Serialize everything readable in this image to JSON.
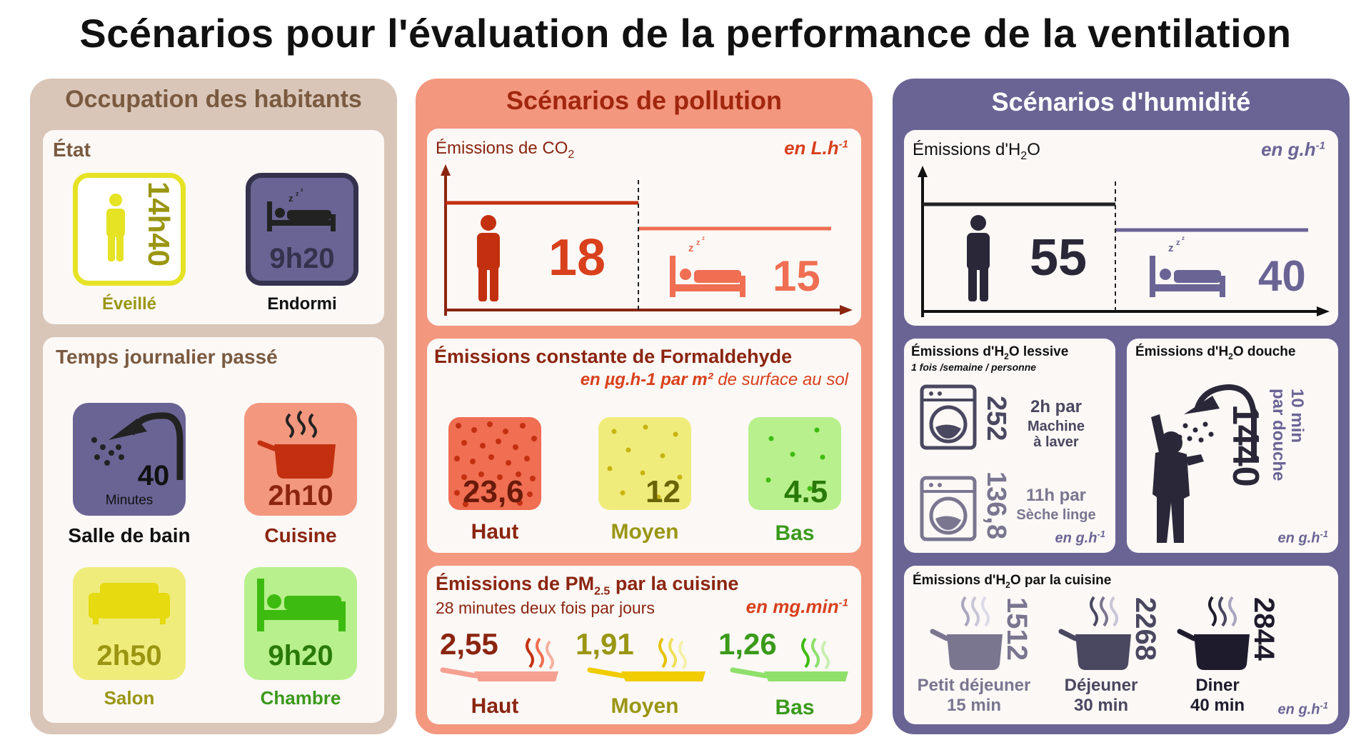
{
  "title": "Scénarios pour l'évaluation de la performance de la ventilation",
  "occupation": {
    "title": "Occupation des habitants",
    "etat": {
      "title": "État",
      "awake": {
        "time": "14h40",
        "label": "Éveillé"
      },
      "asleep": {
        "time": "9h20",
        "label": "Endormi"
      }
    },
    "temps": {
      "title": "Temps journalier passé",
      "bathroom": {
        "value": "40",
        "unit": "Minutes",
        "label": "Salle de bain"
      },
      "kitchen": {
        "value": "2h10",
        "label": "Cuisine"
      },
      "living": {
        "value": "2h50",
        "label": "Salon"
      },
      "bedroom": {
        "value": "9h20",
        "label": "Chambre"
      }
    }
  },
  "pollution": {
    "title": "Scénarios de pollution",
    "co2": {
      "title_prefix": "Émissions de CO",
      "title_sub": "2",
      "unit_base": "en L.h",
      "unit_exp": "-1",
      "awake": "18",
      "asleep": "15"
    },
    "formaldehyde": {
      "title": "Émissions constante de Formaldehyde",
      "unit_italic": "en µg.h-1 par m²",
      "unit_rest": " de surface au sol",
      "high": {
        "value": "23,6",
        "label": "Haut"
      },
      "mid": {
        "value": "12",
        "label": "Moyen"
      },
      "low": {
        "value": "4.5",
        "label": "Bas"
      }
    },
    "pm": {
      "title_prefix": "Émissions de PM",
      "title_sub": "2.5",
      "title_suffix": " par la cuisine",
      "subtitle": "28 minutes deux fois par jours",
      "unit_base": "en mg.min",
      "unit_exp": "-1",
      "high": {
        "value": "2,55",
        "label": "Haut"
      },
      "mid": {
        "value": "1,91",
        "label": "Moyen"
      },
      "low": {
        "value": "1,26",
        "label": "Bas"
      }
    }
  },
  "humidity": {
    "title": "Scénarios d'humidité",
    "h2o": {
      "title_prefix": "Émissions d'H",
      "title_sub": "2",
      "title_suffix": "O",
      "unit_base": "en g.h",
      "unit_exp": "-1",
      "awake": "55",
      "asleep": "40"
    },
    "laundry": {
      "title_prefix": "Émissions d'H",
      "title_sub": "2",
      "title_suffix": "O lessive",
      "subtitle": "1 fois /semaine / personne",
      "washer": {
        "value": "252",
        "line1": "2h par",
        "line2": "Machine",
        "line3": "à laver"
      },
      "dryer": {
        "value": "136,8",
        "line1": "11h par",
        "line2": "Sèche linge"
      },
      "unit_base": "en g.h",
      "unit_exp": "-1"
    },
    "shower": {
      "title_prefix": "Émissions d'H",
      "title_sub": "2",
      "title_suffix": "O douche",
      "value": "1440",
      "duration_line1": "10 min",
      "duration_line2": "par douche",
      "unit_base": "en g.h",
      "unit_exp": "-1"
    },
    "cooking": {
      "title_prefix": "Émissions d'H",
      "title_sub": "2",
      "title_suffix": "O par la cuisine",
      "breakfast": {
        "value": "1512",
        "label": "Petit déjeuner",
        "duration": "15 min"
      },
      "lunch": {
        "value": "2268",
        "label": "Déjeuner",
        "duration": "30 min"
      },
      "dinner": {
        "value": "2844",
        "label": "Diner",
        "duration": "40 min"
      },
      "unit_base": "en g.h",
      "unit_exp": "-1"
    }
  },
  "colors": {
    "occupation_bg": "#d9c6b8",
    "occupation_text": "#7a5a40",
    "pollution_bg": "#f3977e",
    "pollution_text": "#a1260e",
    "humidity_bg": "#6a6495",
    "humidity_text": "#ffffff",
    "yellow": "#e6e224",
    "olive": "#9a9612",
    "navy": "#34324c",
    "red": "#d9401c",
    "green": "#66e634",
    "dark_green": "#3a9a1a"
  }
}
